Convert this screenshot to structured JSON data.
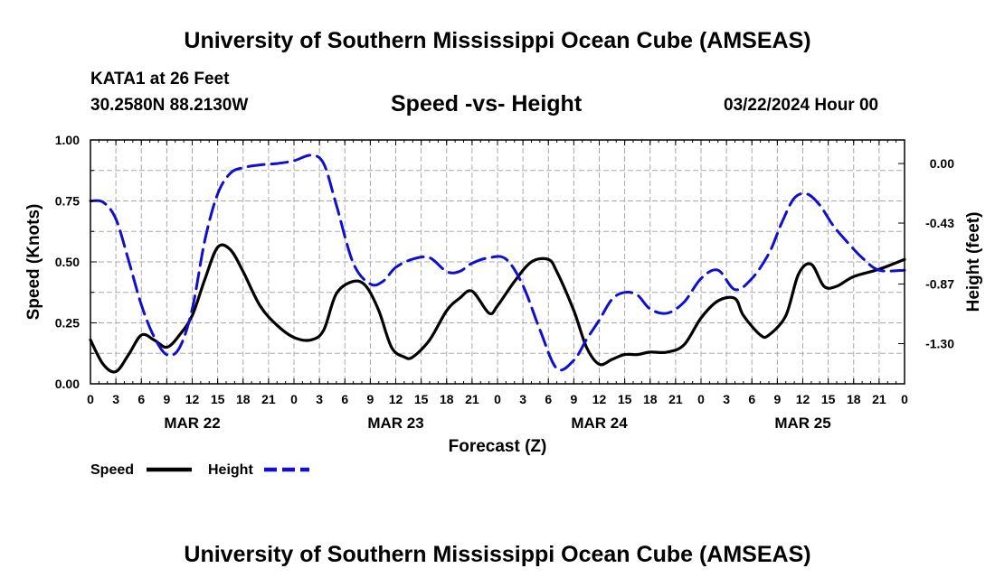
{
  "header": {
    "title": "University of Southern Mississippi Ocean Cube (AMSEAS)",
    "station": "KATA1 at 26 Feet",
    "coords": "30.2580N  88.2130W",
    "subtitle": "Speed -vs- Height",
    "datetime": "03/22/2024 Hour 00"
  },
  "footer": {
    "title": "University of Southern Mississippi Ocean Cube (AMSEAS)"
  },
  "legend": {
    "speed_label": "Speed",
    "height_label": "Height"
  },
  "colors": {
    "speed": "#000000",
    "height": "#1010cc",
    "grid": "#aaaaaa"
  },
  "chart_data": {
    "type": "line",
    "title": "Speed -vs- Height",
    "xlabel": "Forecast (Z)",
    "ylabel": "Speed (Knots)",
    "y2label": "Height (feet)",
    "xlim": [
      0,
      96
    ],
    "ylim": [
      0,
      1
    ],
    "y2lim": [
      -1.59,
      0.17
    ],
    "x_tick_hours": [
      0,
      3,
      6,
      9,
      12,
      15,
      18,
      21,
      24,
      27,
      30,
      33,
      36,
      39,
      42,
      45,
      48,
      51,
      54,
      57,
      60,
      63,
      66,
      69,
      72,
      75,
      78,
      81,
      84,
      87,
      90,
      93,
      96
    ],
    "x_tick_labels": [
      "0",
      "3",
      "6",
      "9",
      "12",
      "15",
      "18",
      "21",
      "0",
      "3",
      "6",
      "9",
      "12",
      "15",
      "18",
      "21",
      "0",
      "3",
      "6",
      "9",
      "12",
      "15",
      "18",
      "21",
      "0",
      "3",
      "6",
      "9",
      "12",
      "15",
      "18",
      "21",
      "0"
    ],
    "date_labels": [
      {
        "hour": 12,
        "text": "MAR 22"
      },
      {
        "hour": 36,
        "text": "MAR 23"
      },
      {
        "hour": 60,
        "text": "MAR 24"
      },
      {
        "hour": 84,
        "text": "MAR 25"
      }
    ],
    "y_ticks": [
      0.0,
      0.25,
      0.5,
      0.75,
      1.0
    ],
    "y_tick_labels": [
      "0.00",
      "0.25",
      "0.50",
      "0.75",
      "1.00"
    ],
    "y2_ticks": [
      0.0,
      -0.43,
      -0.87,
      -1.3
    ],
    "y2_tick_labels": [
      "0.00",
      "-0.43",
      "-0.87",
      "-1.30"
    ],
    "series": [
      {
        "name": "Speed",
        "axis": "left",
        "style": "solid",
        "x": [
          0,
          1.5,
          3,
          4.5,
          6,
          7.5,
          9,
          10.5,
          12,
          13.5,
          15,
          16.5,
          18,
          20,
          22,
          24,
          26,
          27.5,
          29,
          31,
          32.5,
          34,
          35.5,
          37,
          38,
          40,
          42,
          43.5,
          45,
          47,
          48,
          50,
          52,
          54,
          55,
          57,
          58.5,
          60,
          61.5,
          63,
          64.5,
          66,
          68,
          70,
          72,
          74,
          76,
          77,
          79,
          80,
          82,
          83.5,
          85,
          86.5,
          88,
          90,
          93,
          96
        ],
        "values": [
          0.18,
          0.08,
          0.05,
          0.12,
          0.2,
          0.18,
          0.15,
          0.2,
          0.28,
          0.43,
          0.56,
          0.55,
          0.46,
          0.32,
          0.24,
          0.19,
          0.18,
          0.22,
          0.37,
          0.42,
          0.4,
          0.3,
          0.15,
          0.11,
          0.11,
          0.18,
          0.3,
          0.35,
          0.38,
          0.29,
          0.32,
          0.42,
          0.5,
          0.51,
          0.46,
          0.3,
          0.15,
          0.08,
          0.1,
          0.12,
          0.12,
          0.13,
          0.13,
          0.16,
          0.27,
          0.34,
          0.35,
          0.28,
          0.2,
          0.2,
          0.28,
          0.45,
          0.49,
          0.4,
          0.4,
          0.44,
          0.47,
          0.51
        ]
      },
      {
        "name": "Height",
        "axis": "right",
        "style": "dashed",
        "x": [
          0,
          1.5,
          3,
          4.5,
          6,
          7.5,
          9,
          10.5,
          12,
          13.5,
          15,
          16.5,
          18,
          20,
          22,
          24,
          26,
          27.5,
          29,
          31,
          33,
          34.5,
          36,
          38,
          40,
          42,
          43.5,
          45,
          47,
          49,
          51,
          53,
          55,
          57,
          58.5,
          60,
          61.5,
          63,
          64.5,
          66,
          68,
          70,
          72,
          74,
          76,
          78,
          80,
          81.5,
          83,
          84.5,
          86,
          87.5,
          89,
          91,
          93,
          96
        ],
        "values": [
          -0.27,
          -0.28,
          -0.4,
          -0.7,
          -1.02,
          -1.25,
          -1.38,
          -1.33,
          -1.05,
          -0.55,
          -0.22,
          -0.07,
          -0.03,
          -0.01,
          0.0,
          0.02,
          0.06,
          0.0,
          -0.3,
          -0.72,
          -0.87,
          -0.85,
          -0.75,
          -0.69,
          -0.68,
          -0.78,
          -0.78,
          -0.72,
          -0.68,
          -0.69,
          -0.88,
          -1.2,
          -1.48,
          -1.42,
          -1.27,
          -1.13,
          -0.98,
          -0.93,
          -0.95,
          -1.05,
          -1.08,
          -1.0,
          -0.83,
          -0.77,
          -0.91,
          -0.83,
          -0.65,
          -0.43,
          -0.25,
          -0.22,
          -0.3,
          -0.44,
          -0.55,
          -0.68,
          -0.77,
          -0.77
        ]
      }
    ]
  }
}
